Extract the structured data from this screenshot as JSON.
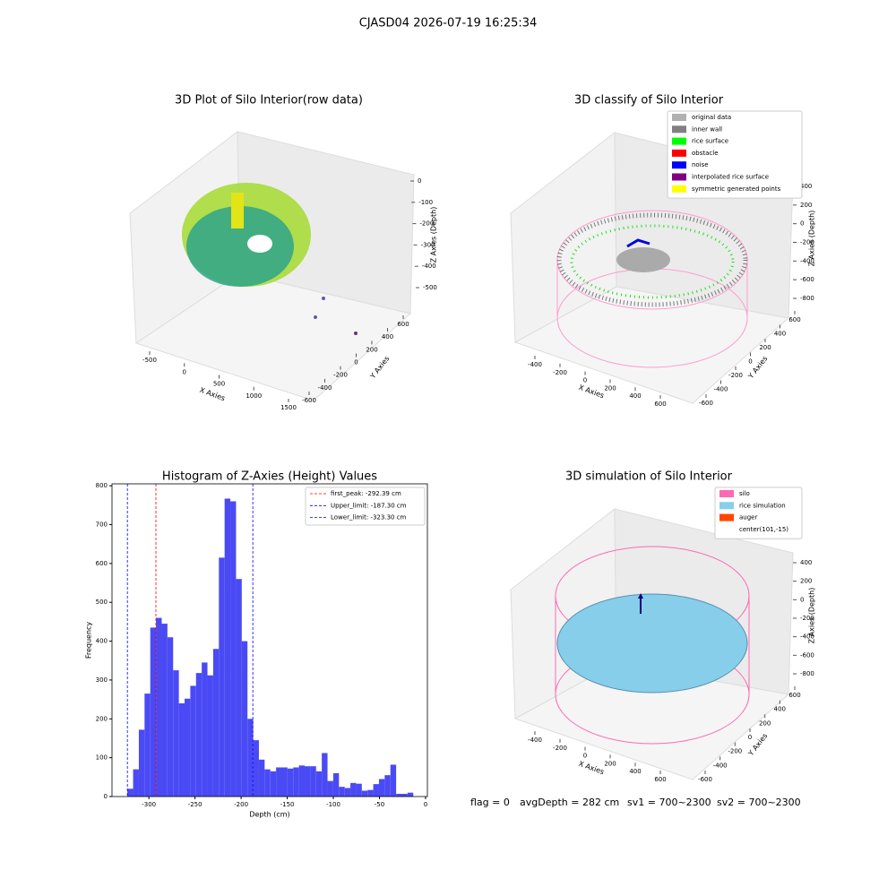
{
  "suptitle": "CJASD04 2026-07-19 16:25:34",
  "footer": [
    "flag = 0",
    "avgDepth = 282 cm",
    "sv1 = 700~2300",
    "sv2 = 700~2300"
  ],
  "chart_data": [
    {
      "type": "scatter3d",
      "title": "3D Plot of Silo Interior(row data)",
      "xlabel": "X Axies",
      "ylabel": "Y Axies",
      "zlabel": "Z Axies (Depth)",
      "xticks": [
        -500,
        0,
        500,
        1000,
        1500
      ],
      "yticks": [
        -600,
        -400,
        -200,
        0,
        200,
        400,
        600
      ],
      "zticks": [
        0,
        -100,
        -200,
        -300,
        -400,
        -500
      ]
    },
    {
      "type": "scatter3d",
      "title": "3D classify of Silo Interior",
      "xlabel": "X Axies",
      "ylabel": "Y Axies",
      "zlabel": "Z Axies (Depth)",
      "xticks": [
        -400,
        -200,
        0,
        200,
        400,
        600
      ],
      "yticks": [
        -600,
        -400,
        -200,
        0,
        200,
        400,
        600
      ],
      "zticks": [
        400,
        200,
        0,
        -200,
        -400,
        -600,
        -800
      ],
      "legend": [
        {
          "name": "original data",
          "color": "#b0b0b0"
        },
        {
          "name": "inner wall",
          "color": "#808080"
        },
        {
          "name": "rice surface",
          "color": "#00ff00"
        },
        {
          "name": "obstacle",
          "color": "#ff0000"
        },
        {
          "name": "noise",
          "color": "#0000ff"
        },
        {
          "name": "interpolated rice surface",
          "color": "#800080"
        },
        {
          "name": "symmetric generated points",
          "color": "#ffff00"
        }
      ]
    },
    {
      "type": "histogram",
      "title": "Histogram of Z-Axies (Height) Values",
      "xlabel": "Depth (cm)",
      "ylabel": "Frequency",
      "color": "#4a4af5",
      "bins": [
        -323.3,
        -317.1,
        -310.9,
        -304.7,
        -298.5,
        -292.3,
        -286.1,
        -279.9,
        -273.7,
        -267.5,
        -261.3,
        -255.1,
        -248.9,
        -242.7,
        -236.5,
        -230.3,
        -224.1,
        -217.9,
        -211.7,
        -205.5,
        -199.3,
        -193.1,
        -186.9,
        -180.7,
        -174.5,
        -168.3,
        -162.1,
        -155.9,
        -149.7,
        -143.5,
        -137.3,
        -131.1,
        -124.9,
        -118.7,
        -112.5,
        -106.3,
        -100.1,
        -93.9,
        -87.7,
        -81.5,
        -75.3,
        -69.1,
        -62.9,
        -56.7,
        -50.5,
        -44.3,
        -38.1,
        -31.9,
        -25.7,
        -19.5,
        -13.3
      ],
      "values": [
        20,
        70,
        172,
        265,
        435,
        460,
        445,
        410,
        325,
        240,
        252,
        285,
        318,
        345,
        312,
        380,
        615,
        767,
        760,
        560,
        400,
        200,
        145,
        95,
        70,
        65,
        75,
        75,
        72,
        75,
        80,
        78,
        78,
        65,
        112,
        40,
        60,
        25,
        22,
        35,
        33,
        15,
        17,
        32,
        45,
        55,
        82,
        7,
        7,
        10
      ],
      "xlim": [
        -340,
        2
      ],
      "ylim": [
        0,
        805
      ],
      "xticks": [
        -300,
        -250,
        -200,
        -150,
        -100,
        -50,
        0
      ],
      "yticks": [
        0,
        100,
        200,
        300,
        400,
        500,
        600,
        700,
        800
      ],
      "vlines": [
        {
          "label": "first_peak: -292.39 cm",
          "value": -292.39,
          "color": "#ff0000"
        },
        {
          "label": "Upper_limit: -187.30 cm",
          "value": -187.3,
          "color": "#0000ff"
        },
        {
          "label": "Lower_limit: -323.30 cm",
          "value": -323.3,
          "color": "#0000ff"
        }
      ]
    },
    {
      "type": "scatter3d",
      "title": "3D simulation of Silo Interior",
      "xlabel": "X Axies",
      "ylabel": "Y Axies",
      "zlabel": "Z Axies (Depth)",
      "xticks": [
        -400,
        -200,
        0,
        200,
        400,
        600
      ],
      "yticks": [
        -600,
        -400,
        -200,
        0,
        200,
        400,
        600
      ],
      "zticks": [
        400,
        200,
        0,
        -200,
        -400,
        -600,
        -800
      ],
      "legend": [
        {
          "name": "silo",
          "color": "#ff69b4"
        },
        {
          "name": "rice simulation",
          "color": "#87ceeb"
        },
        {
          "name": "auger",
          "color": "#ff4500"
        },
        {
          "name": "center(101,-15)",
          "color": "#ffffff"
        }
      ]
    }
  ]
}
